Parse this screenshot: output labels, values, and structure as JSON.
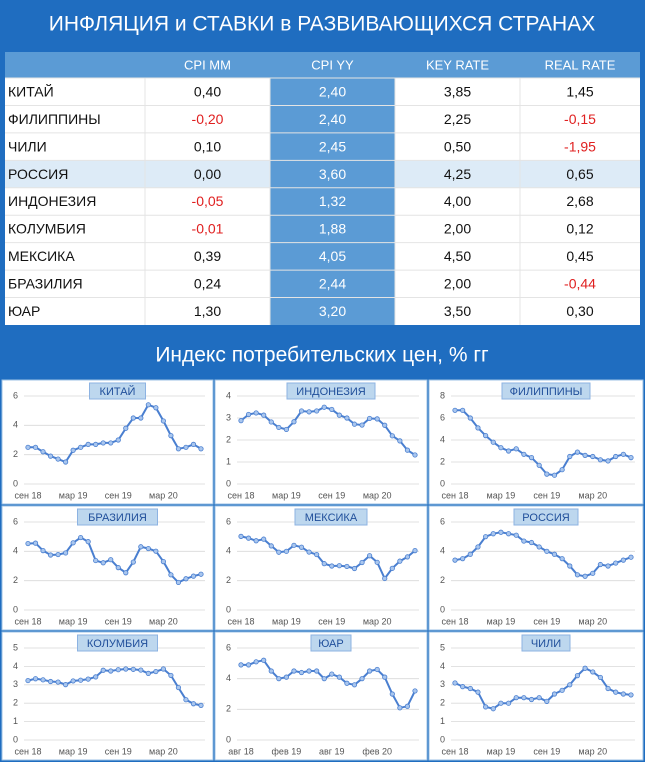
{
  "title": "ИНФЛЯЦИЯ и СТАВКИ в РАЗВИВАЮЩИХСЯ СТРАНАХ",
  "table": {
    "columns": [
      "CPI MM",
      "CPI YY",
      "KEY RATE",
      "REAL RATE"
    ],
    "highlight_column": 1,
    "highlight_row": 3,
    "negative_color": "#e02020",
    "rows": [
      {
        "country": "КИТАЙ",
        "values": [
          "0,40",
          "2,40",
          "3,85",
          "1,45"
        ]
      },
      {
        "country": "ФИЛИППИНЫ",
        "values": [
          "-0,20",
          "2,40",
          "2,25",
          "-0,15"
        ]
      },
      {
        "country": "ЧИЛИ",
        "values": [
          "0,10",
          "2,45",
          "0,50",
          "-1,95"
        ]
      },
      {
        "country": "РОССИЯ",
        "values": [
          "0,00",
          "3,60",
          "4,25",
          "0,65"
        ]
      },
      {
        "country": "ИНДОНЕЗИЯ",
        "values": [
          "-0,05",
          "1,32",
          "4,00",
          "2,68"
        ]
      },
      {
        "country": "КОЛУМБИЯ",
        "values": [
          "-0,01",
          "1,88",
          "2,00",
          "0,12"
        ]
      },
      {
        "country": "МЕКСИКА",
        "values": [
          "0,39",
          "4,05",
          "4,50",
          "0,45"
        ]
      },
      {
        "country": "БРАЗИЛИЯ",
        "values": [
          "0,24",
          "2,44",
          "2,00",
          "-0,44"
        ]
      },
      {
        "country": "ЮАР",
        "values": [
          "1,30",
          "3,20",
          "3,50",
          "0,30"
        ]
      }
    ]
  },
  "section_title": "Индекс потребительских цен, % гг",
  "chart_data": [
    {
      "type": "line",
      "title": "КИТАЙ",
      "color": "#4a7fd0",
      "grid": true,
      "ylim": [
        0,
        6
      ],
      "yticks": [
        0,
        2,
        4,
        6
      ],
      "categories": [
        "сен 18",
        null,
        null,
        null,
        null,
        null,
        "мар 19",
        null,
        null,
        null,
        null,
        null,
        "сен 19",
        null,
        null,
        null,
        null,
        null,
        "мар 20",
        null,
        null,
        null,
        null,
        null
      ],
      "values": [
        2.5,
        2.5,
        2.2,
        1.9,
        1.7,
        1.5,
        2.3,
        2.5,
        2.7,
        2.7,
        2.8,
        2.8,
        3.0,
        3.8,
        4.5,
        4.5,
        5.4,
        5.2,
        4.3,
        3.3,
        2.4,
        2.5,
        2.7,
        2.4
      ]
    },
    {
      "type": "line",
      "title": "ИНДОНЕЗИЯ",
      "color": "#4a7fd0",
      "grid": true,
      "ylim": [
        0,
        4
      ],
      "yticks": [
        0,
        1,
        2,
        3,
        4
      ],
      "categories": [
        "сен 18",
        null,
        null,
        null,
        null,
        null,
        "мар 19",
        null,
        null,
        null,
        null,
        null,
        "сен 19",
        null,
        null,
        null,
        null,
        null,
        "мар 20",
        null,
        null,
        null,
        null,
        null
      ],
      "values": [
        2.88,
        3.16,
        3.23,
        3.13,
        2.82,
        2.57,
        2.48,
        2.83,
        3.32,
        3.28,
        3.32,
        3.49,
        3.39,
        3.13,
        3.0,
        2.72,
        2.68,
        2.98,
        2.96,
        2.67,
        2.19,
        1.96,
        1.54,
        1.32
      ]
    },
    {
      "type": "line",
      "title": "ФИЛИППИНЫ",
      "color": "#4a7fd0",
      "grid": true,
      "ylim": [
        0,
        8
      ],
      "yticks": [
        0,
        2,
        4,
        6,
        8
      ],
      "categories": [
        "сен 18",
        null,
        null,
        null,
        null,
        null,
        "мар 19",
        null,
        null,
        null,
        null,
        null,
        "сен 19",
        null,
        null,
        null,
        null,
        null,
        "мар 20",
        null,
        null,
        null,
        null,
        null
      ],
      "values": [
        6.7,
        6.7,
        6.0,
        5.1,
        4.4,
        3.8,
        3.3,
        3.0,
        3.2,
        2.7,
        2.4,
        1.7,
        0.9,
        0.8,
        1.3,
        2.5,
        2.9,
        2.6,
        2.5,
        2.2,
        2.1,
        2.5,
        2.7,
        2.4
      ]
    },
    {
      "type": "line",
      "title": "БРАЗИЛИЯ",
      "color": "#4a7fd0",
      "grid": true,
      "ylim": [
        0,
        6
      ],
      "yticks": [
        0,
        2,
        4,
        6
      ],
      "categories": [
        "сен 18",
        null,
        null,
        null,
        null,
        null,
        "мар 19",
        null,
        null,
        null,
        null,
        null,
        "сен 19",
        null,
        null,
        null,
        null,
        null,
        "мар 20",
        null,
        null,
        null,
        null,
        null
      ],
      "values": [
        4.53,
        4.56,
        4.05,
        3.75,
        3.78,
        3.89,
        4.58,
        4.94,
        4.66,
        3.37,
        3.22,
        3.43,
        2.89,
        2.54,
        3.27,
        4.31,
        4.19,
        4.01,
        3.3,
        2.4,
        1.88,
        2.13,
        2.31,
        2.44
      ]
    },
    {
      "type": "line",
      "title": "МЕКСИКА",
      "color": "#4a7fd0",
      "grid": true,
      "ylim": [
        0,
        6
      ],
      "yticks": [
        0,
        2,
        4,
        6
      ],
      "categories": [
        "сен 18",
        null,
        null,
        null,
        null,
        null,
        "мар 19",
        null,
        null,
        null,
        null,
        null,
        "сен 19",
        null,
        null,
        null,
        null,
        null,
        "мар 20",
        null,
        null,
        null,
        null,
        null
      ],
      "values": [
        5.02,
        4.9,
        4.72,
        4.83,
        4.37,
        3.94,
        4.0,
        4.41,
        4.28,
        3.95,
        3.78,
        3.16,
        3.0,
        3.02,
        2.97,
        2.83,
        3.24,
        3.7,
        3.25,
        2.15,
        2.84,
        3.33,
        3.62,
        4.05
      ]
    },
    {
      "type": "line",
      "title": "РОССИЯ",
      "color": "#4a7fd0",
      "grid": true,
      "ylim": [
        0,
        6
      ],
      "yticks": [
        0,
        2,
        4,
        6
      ],
      "categories": [
        "сен 18",
        null,
        null,
        null,
        null,
        null,
        "мар 19",
        null,
        null,
        null,
        null,
        null,
        "сен 19",
        null,
        null,
        null,
        null,
        null,
        "мар 20",
        null,
        null,
        null,
        null,
        null
      ],
      "values": [
        3.4,
        3.5,
        3.8,
        4.3,
        5.0,
        5.2,
        5.3,
        5.2,
        5.1,
        4.7,
        4.6,
        4.3,
        4.0,
        3.8,
        3.5,
        3.0,
        2.4,
        2.3,
        2.5,
        3.1,
        3.0,
        3.2,
        3.4,
        3.6
      ]
    },
    {
      "type": "line",
      "title": "КОЛУМБИЯ",
      "color": "#4a7fd0",
      "grid": true,
      "ylim": [
        0,
        5
      ],
      "yticks": [
        0,
        1,
        2,
        3,
        4,
        5
      ],
      "categories": [
        "сен 18",
        null,
        null,
        null,
        null,
        null,
        "мар 19",
        null,
        null,
        null,
        null,
        null,
        "сен 19",
        null,
        null,
        null,
        null,
        null,
        "мар 20",
        null,
        null,
        null,
        null,
        null
      ],
      "values": [
        3.23,
        3.33,
        3.27,
        3.18,
        3.15,
        3.01,
        3.21,
        3.25,
        3.31,
        3.43,
        3.79,
        3.75,
        3.82,
        3.86,
        3.84,
        3.8,
        3.62,
        3.72,
        3.86,
        3.51,
        2.85,
        2.19,
        1.97,
        1.88
      ]
    },
    {
      "type": "line",
      "title": "ЮАР",
      "color": "#4a7fd0",
      "grid": true,
      "ylim": [
        0,
        6
      ],
      "yticks": [
        0,
        2,
        4,
        6
      ],
      "categories": [
        "авг 18",
        null,
        null,
        null,
        null,
        null,
        "фев 19",
        null,
        null,
        null,
        null,
        null,
        "авг 19",
        null,
        null,
        null,
        null,
        null,
        "фев 20",
        null,
        null,
        null,
        null,
        null
      ],
      "values": [
        4.9,
        4.9,
        5.1,
        5.2,
        4.5,
        4.0,
        4.1,
        4.5,
        4.4,
        4.5,
        4.5,
        4.0,
        4.3,
        4.1,
        3.7,
        3.6,
        4.0,
        4.5,
        4.6,
        4.1,
        3.0,
        2.1,
        2.2,
        3.2
      ]
    },
    {
      "type": "line",
      "title": "ЧИЛИ",
      "color": "#4a7fd0",
      "grid": true,
      "ylim": [
        0,
        5
      ],
      "yticks": [
        0,
        1,
        2,
        3,
        4,
        5
      ],
      "categories": [
        "сен 18",
        null,
        null,
        null,
        null,
        null,
        "мар 19",
        null,
        null,
        null,
        null,
        null,
        "сен 19",
        null,
        null,
        null,
        null,
        null,
        "мар 20",
        null,
        null,
        null,
        null,
        null
      ],
      "values": [
        3.1,
        2.9,
        2.8,
        2.6,
        1.8,
        1.7,
        2.0,
        2.0,
        2.3,
        2.3,
        2.2,
        2.3,
        2.1,
        2.5,
        2.7,
        3.0,
        3.5,
        3.9,
        3.7,
        3.4,
        2.8,
        2.6,
        2.5,
        2.45
      ]
    }
  ]
}
